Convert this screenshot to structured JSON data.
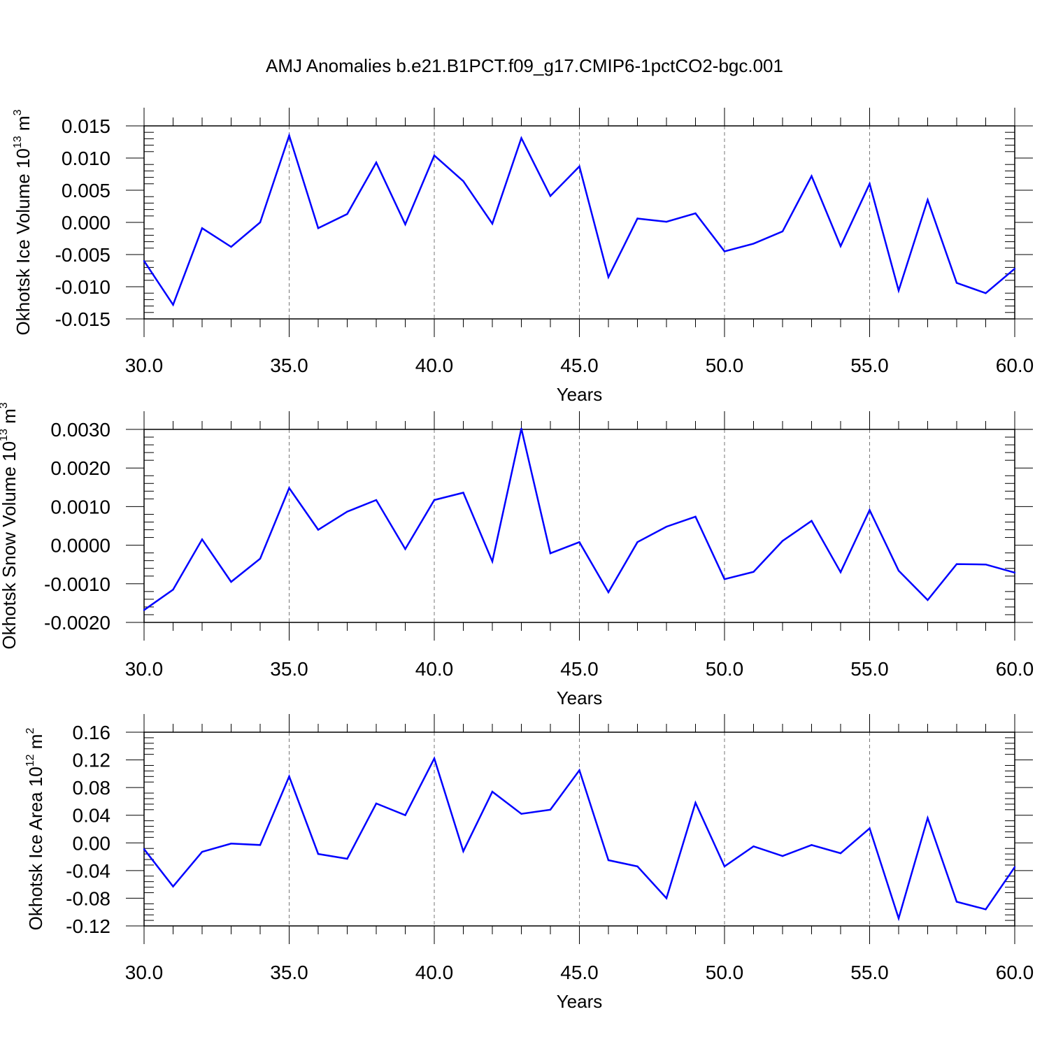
{
  "title": "AMJ Anomalies b.e21.B1PCT.f09_g17.CMIP6-1pctCO2-bgc.001",
  "line_color": "#0000ff",
  "chart_data": [
    {
      "type": "line",
      "title": "AMJ Anomalies b.e21.B1PCT.f09_g17.CMIP6-1pctCO2-bgc.001",
      "xlabel": "Years",
      "ylabel_main": "Okhotsk Ice Volume 10",
      "ylabel_exp": "13",
      "ylabel_unit": " m",
      "ylabel_unit_exp": "3",
      "xlim": [
        30,
        60
      ],
      "ylim": [
        -0.015,
        0.015
      ],
      "x_ticks": [
        "30.0",
        "35.0",
        "40.0",
        "45.0",
        "50.0",
        "55.0",
        "60.0"
      ],
      "y_tick_values": [
        -0.015,
        -0.01,
        -0.005,
        0.0,
        0.005,
        0.01,
        0.015
      ],
      "y_ticks": [
        "-0.015",
        "-0.010",
        "-0.005",
        "0.000",
        "0.005",
        "0.010",
        "0.015"
      ],
      "grid": "dashed vertical lines at major x ticks",
      "x": [
        30,
        31,
        32,
        33,
        34,
        35,
        36,
        37,
        38,
        39,
        40,
        41,
        42,
        43,
        44,
        45,
        46,
        47,
        48,
        49,
        50,
        51,
        52,
        53,
        54,
        55,
        56,
        57,
        58,
        59,
        60
      ],
      "values": [
        -0.006,
        -0.0128,
        -0.0009,
        -0.0038,
        0.0,
        0.0135,
        -0.0009,
        0.0013,
        0.0093,
        -0.0003,
        0.0104,
        0.0064,
        -0.0002,
        0.0131,
        0.0041,
        0.0087,
        -0.0085,
        0.0006,
        0.0001,
        0.0014,
        -0.0045,
        -0.0033,
        -0.0014,
        0.0072,
        -0.0037,
        0.006,
        -0.0106,
        0.0035,
        -0.0094,
        -0.011,
        -0.0072
      ]
    },
    {
      "type": "line",
      "xlabel": "Years",
      "ylabel_main": "Okhotsk Snow Volume 10",
      "ylabel_exp": "13",
      "ylabel_unit": " m",
      "ylabel_unit_exp": "3",
      "xlim": [
        30,
        60
      ],
      "ylim": [
        -0.002,
        0.003
      ],
      "x_ticks": [
        "30.0",
        "35.0",
        "40.0",
        "45.0",
        "50.0",
        "55.0",
        "60.0"
      ],
      "y_tick_values": [
        -0.002,
        -0.001,
        0.0,
        0.001,
        0.002,
        0.003
      ],
      "y_ticks": [
        "-0.0020",
        "-0.0010",
        "0.0000",
        "0.0010",
        "0.0020",
        "0.0030"
      ],
      "grid": "dashed vertical lines at major x ticks",
      "x": [
        30,
        31,
        32,
        33,
        34,
        35,
        36,
        37,
        38,
        39,
        40,
        41,
        42,
        43,
        44,
        45,
        46,
        47,
        48,
        49,
        50,
        51,
        52,
        53,
        54,
        55,
        56,
        57,
        58,
        59,
        60
      ],
      "values": [
        -0.00168,
        -0.00115,
        0.00015,
        -0.00095,
        -0.00035,
        0.00148,
        0.0004,
        0.00087,
        0.00117,
        -0.0001,
        0.00117,
        0.00136,
        -0.00042,
        0.00302,
        -0.00021,
        8e-05,
        -0.00122,
        8e-05,
        0.00048,
        0.00074,
        -0.00088,
        -0.00069,
        0.00011,
        0.00063,
        -0.0007,
        0.00091,
        -0.00066,
        -0.00142,
        -0.00049,
        -0.0005,
        -0.00071
      ]
    },
    {
      "type": "line",
      "xlabel": "Years",
      "ylabel_main": "Okhotsk Ice Area 10",
      "ylabel_exp": "12",
      "ylabel_unit": " m",
      "ylabel_unit_exp": "2",
      "xlim": [
        30,
        60
      ],
      "ylim": [
        -0.12,
        0.16
      ],
      "x_ticks": [
        "30.0",
        "35.0",
        "40.0",
        "45.0",
        "50.0",
        "55.0",
        "60.0"
      ],
      "y_tick_values": [
        -0.12,
        -0.08,
        -0.04,
        0.0,
        0.04,
        0.08,
        0.12,
        0.16
      ],
      "y_ticks": [
        "-0.12",
        "-0.08",
        "-0.04",
        "0.00",
        "0.04",
        "0.08",
        "0.12",
        "0.16"
      ],
      "grid": "dashed vertical lines at major x ticks",
      "x": [
        30,
        31,
        32,
        33,
        34,
        35,
        36,
        37,
        38,
        39,
        40,
        41,
        42,
        43,
        44,
        45,
        46,
        47,
        48,
        49,
        50,
        51,
        52,
        53,
        54,
        55,
        56,
        57,
        58,
        59,
        60
      ],
      "values": [
        -0.009,
        -0.063,
        -0.013,
        -0.001,
        -0.003,
        0.096,
        -0.016,
        -0.023,
        0.057,
        0.04,
        0.122,
        -0.012,
        0.074,
        0.042,
        0.048,
        0.105,
        -0.025,
        -0.034,
        -0.08,
        0.058,
        -0.034,
        -0.005,
        -0.019,
        -0.003,
        -0.015,
        0.021,
        -0.109,
        0.036,
        -0.085,
        -0.096,
        -0.035
      ]
    }
  ]
}
